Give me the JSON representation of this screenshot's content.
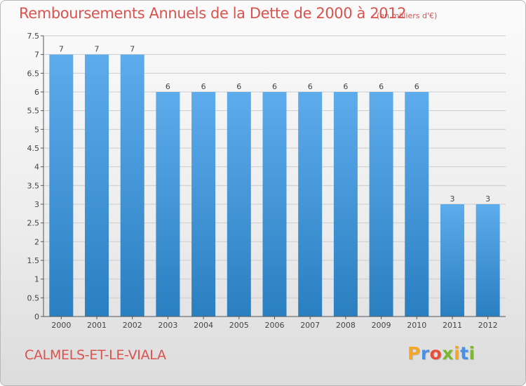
{
  "title": "Remboursements Annuels de la Dette de 2000 à 2012",
  "subtitle": "(en milliers d'€)",
  "commune": "CALMELS-ET-LE-VIALA",
  "logo": {
    "letters": [
      "P",
      "r",
      "o",
      "x",
      "i",
      "t",
      "i"
    ],
    "colors": [
      "#f5a623",
      "#4a90e2",
      "#e94e3c",
      "#7cb82f",
      "#f5a623",
      "#4a90e2",
      "#7cb82f"
    ]
  },
  "colors": {
    "bar_top": "#5dacec",
    "bar_bottom": "#2a7fc0",
    "axis": "#555555",
    "grid": "#cccccc",
    "text_red": "#d9534f"
  },
  "chart_data": {
    "type": "bar",
    "categories": [
      "2000",
      "2001",
      "2002",
      "2003",
      "2004",
      "2005",
      "2006",
      "2007",
      "2008",
      "2009",
      "2010",
      "2011",
      "2012"
    ],
    "values": [
      7,
      7,
      7,
      6,
      6,
      6,
      6,
      6,
      6,
      6,
      6,
      3,
      3
    ],
    "value_labels": [
      "7",
      "7",
      "7",
      "6",
      "6",
      "6",
      "6",
      "6",
      "6",
      "6",
      "6",
      "3",
      "3"
    ],
    "ylim": [
      0,
      7.5
    ],
    "yticks": [
      "0",
      "0.5",
      "1",
      "1.5",
      "2",
      "2.5",
      "3",
      "3.5",
      "4",
      "4.5",
      "5",
      "5.5",
      "6",
      "6.5",
      "7",
      "7.5"
    ],
    "grid": true
  }
}
